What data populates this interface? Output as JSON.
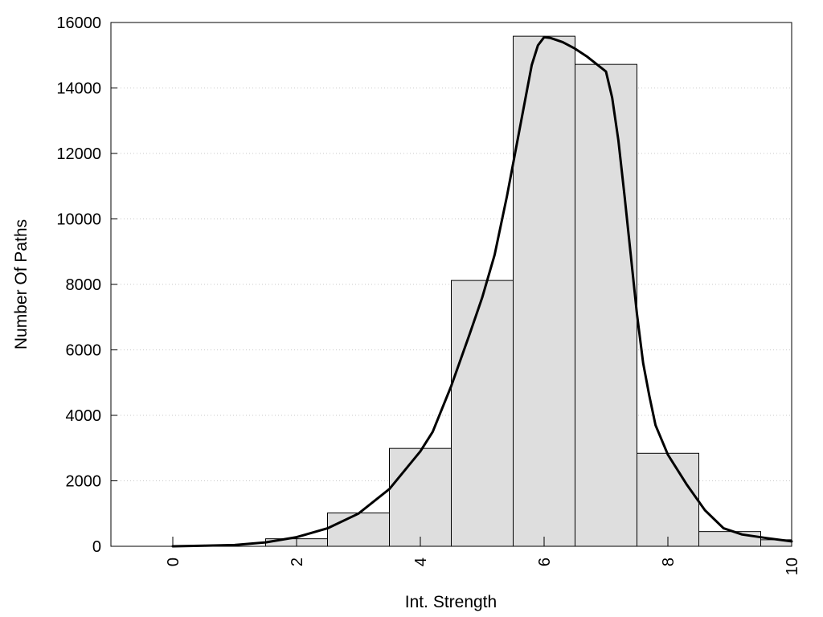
{
  "chart_data": {
    "type": "bar",
    "title": "",
    "xlabel": "Int. Strength",
    "ylabel": "Number Of Paths",
    "xlim": [
      -1,
      10
    ],
    "ylim": [
      0,
      16000
    ],
    "x_ticks": [
      0,
      2,
      4,
      6,
      8,
      10
    ],
    "y_ticks": [
      0,
      2000,
      4000,
      6000,
      8000,
      10000,
      12000,
      14000,
      16000
    ],
    "grid": {
      "y": true,
      "x": false
    },
    "bin_width": 1,
    "bars": [
      {
        "x": 0,
        "value": 0
      },
      {
        "x": 1,
        "value": 0
      },
      {
        "x": 2,
        "value": 230
      },
      {
        "x": 3,
        "value": 1020
      },
      {
        "x": 4,
        "value": 2990
      },
      {
        "x": 5,
        "value": 8120
      },
      {
        "x": 6,
        "value": 15580
      },
      {
        "x": 7,
        "value": 14720
      },
      {
        "x": 8,
        "value": 2840
      },
      {
        "x": 9,
        "value": 450
      },
      {
        "x": 10,
        "value": 200
      }
    ],
    "curve": {
      "x": [
        0,
        0.5,
        1,
        1.5,
        2,
        2.5,
        3,
        3.5,
        4,
        4.2,
        4.5,
        4.8,
        5,
        5.2,
        5.4,
        5.6,
        5.8,
        5.9,
        6,
        6.1,
        6.3,
        6.5,
        6.7,
        7,
        7.1,
        7.2,
        7.3,
        7.4,
        7.5,
        7.6,
        7.7,
        7.8,
        8,
        8.3,
        8.6,
        8.9,
        9.2,
        9.6,
        10
      ],
      "y": [
        0,
        20,
        40,
        120,
        280,
        550,
        1000,
        1750,
        2900,
        3500,
        4900,
        6500,
        7600,
        8900,
        10700,
        12700,
        14700,
        15300,
        15550,
        15530,
        15400,
        15200,
        14950,
        14500,
        13700,
        12400,
        10700,
        8900,
        7100,
        5600,
        4600,
        3700,
        2800,
        1900,
        1100,
        550,
        360,
        250,
        150
      ]
    },
    "colors": {
      "bar_fill": "#dedede",
      "bar_edge": "#000000",
      "curve": "#000000",
      "grid": "#c8c8c8"
    }
  }
}
